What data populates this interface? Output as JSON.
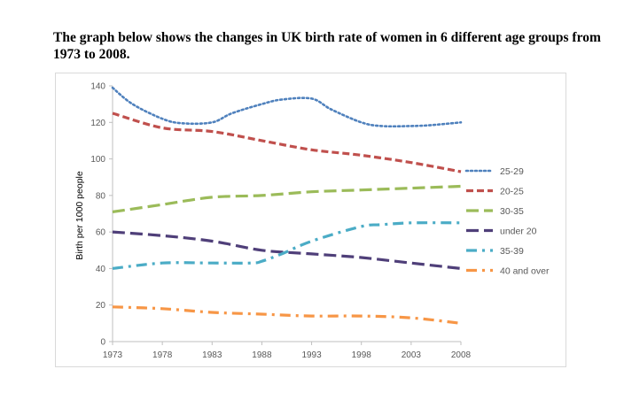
{
  "title": "The graph below shows the changes in UK birth rate of women in 6 different age groups from 1973 to 2008.",
  "chart_data": {
    "type": "line",
    "title": "The graph below shows the changes in UK birth rate of women in 6 different age groups from 1973 to 2008.",
    "xlabel": "",
    "ylabel": "Birth per 1000 people",
    "x": [
      1973,
      1978,
      1983,
      1988,
      1993,
      1998,
      2003,
      2008
    ],
    "x_ticks": [
      "1973",
      "1978",
      "1983",
      "1988",
      "1993",
      "1998",
      "2003",
      "2008"
    ],
    "ylim": [
      0,
      140
    ],
    "y_ticks": [
      0,
      20,
      40,
      60,
      80,
      100,
      120,
      140
    ],
    "grid": false,
    "legend_position": "right",
    "series": [
      {
        "name": "25-29",
        "color": "#4f81bd",
        "dash": "dot",
        "x": [
          1973,
          1975,
          1978,
          1980,
          1983,
          1985,
          1988,
          1990,
          1993,
          1995,
          1998,
          2000,
          2003,
          2005,
          2008
        ],
        "values": [
          139,
          130,
          122,
          119.5,
          120,
          125,
          130,
          132.5,
          133,
          127,
          120,
          118,
          118,
          118.5,
          120
        ]
      },
      {
        "name": "20-25",
        "color": "#c0504d",
        "dash": "dash",
        "x": [
          1973,
          1978,
          1983,
          1988,
          1993,
          1998,
          2003,
          2008
        ],
        "values": [
          125,
          117,
          115,
          110,
          105,
          102,
          98,
          93
        ]
      },
      {
        "name": "30-35",
        "color": "#9bbb59",
        "dash": "longdash",
        "x": [
          1973,
          1978,
          1983,
          1988,
          1993,
          1998,
          2003,
          2008
        ],
        "values": [
          71,
          75,
          79,
          80,
          82,
          83,
          84,
          85
        ]
      },
      {
        "name": "under 20",
        "color": "#4f3f79",
        "dash": "longdash",
        "x": [
          1973,
          1978,
          1983,
          1988,
          1993,
          1998,
          2003,
          2008
        ],
        "values": [
          60,
          58,
          55,
          50,
          48,
          46,
          43,
          40
        ]
      },
      {
        "name": "35-39",
        "color": "#4bacc6",
        "dash": "dashdot",
        "x": [
          1973,
          1978,
          1983,
          1987,
          1988,
          1990,
          1993,
          1998,
          2000,
          2003,
          2008
        ],
        "values": [
          40,
          43,
          43,
          43,
          44,
          48,
          55,
          63,
          64,
          65,
          65
        ]
      },
      {
        "name": "40 and over",
        "color": "#f79646",
        "dash": "dashdot",
        "x": [
          1973,
          1978,
          1983,
          1988,
          1993,
          1998,
          2003,
          2008
        ],
        "values": [
          19,
          18,
          16,
          15,
          14,
          14,
          13,
          10
        ]
      }
    ]
  }
}
